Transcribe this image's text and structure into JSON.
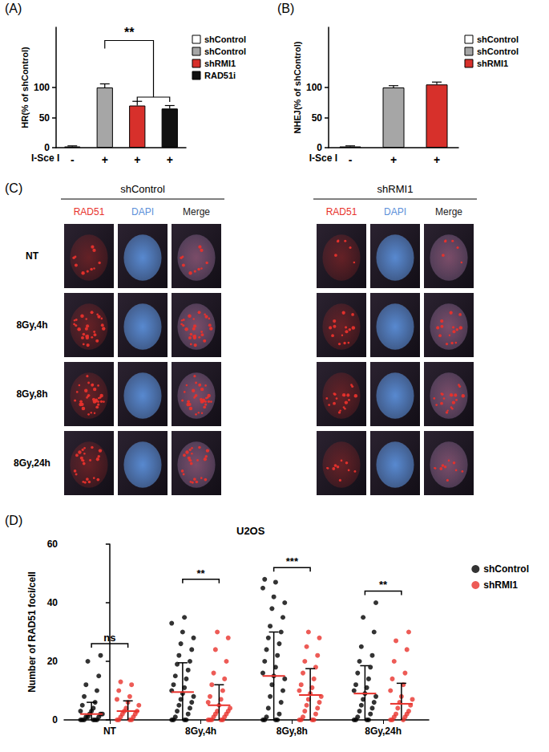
{
  "chart_data": [
    {
      "panel": "(A)",
      "type": "bar",
      "x_label": "I-Sce I",
      "y_label": "HR(% of shControl)",
      "categories": [
        "-",
        "+",
        "+",
        "+"
      ],
      "values": [
        2,
        100,
        70,
        65
      ],
      "errors": [
        1,
        6,
        7,
        5
      ],
      "colors": [
        "#ffffff",
        "#a6a6a6",
        "#d7302b",
        "#111111"
      ],
      "bar_names": [
        "shControl",
        "shControl",
        "shRMI1",
        "RAD51i"
      ],
      "ylim": [
        0,
        200
      ],
      "yticks": [
        0,
        50,
        100
      ],
      "legend": "upper right",
      "significance": [
        {
          "text": "**",
          "from": 1,
          "to": [
            2,
            3
          ],
          "y": 178,
          "inner_y": 84
        }
      ]
    },
    {
      "panel": "(B)",
      "type": "bar",
      "x_label": "I-Sce I",
      "y_label": "NHEJ(% of shControl)",
      "categories": [
        "-",
        "+",
        "+"
      ],
      "values": [
        2,
        100,
        105
      ],
      "errors": [
        1,
        3,
        4
      ],
      "colors": [
        "#ffffff",
        "#a6a6a6",
        "#d7302b"
      ],
      "bar_names": [
        "shControl",
        "shControl",
        "shRMI1"
      ],
      "ylim": [
        0,
        200
      ],
      "yticks": [
        0,
        50,
        100
      ],
      "legend": "upper right"
    },
    {
      "panel": "(D)",
      "type": "scatter",
      "title": "U2OS",
      "y_label": "Number of RAD51 foci/cell",
      "categories": [
        "NT",
        "8Gy,4h",
        "8Gy,8h",
        "8Gy,24h"
      ],
      "ylim": [
        0,
        60
      ],
      "yticks": [
        0,
        20,
        40,
        60
      ],
      "legend": "upper right",
      "marker": "circle",
      "series": [
        {
          "name": "shControl",
          "color": "#000000",
          "values": [
            [
              0,
              0,
              0,
              0,
              0,
              0,
              1,
              1,
              1,
              2,
              2,
              2,
              3,
              3,
              4,
              5,
              6,
              8,
              10,
              12,
              15,
              20,
              22
            ],
            [
              0,
              0,
              0,
              0,
              1,
              2,
              3,
              4,
              5,
              6,
              7,
              8,
              9,
              10,
              11,
              12,
              14,
              15,
              17,
              19,
              20,
              22,
              24,
              26,
              28,
              30,
              33,
              35
            ],
            [
              0,
              0,
              0,
              0,
              1,
              2,
              4,
              6,
              8,
              10,
              12,
              14,
              15,
              16,
              18,
              20,
              22,
              24,
              26,
              28,
              30,
              32,
              35,
              38,
              40,
              42,
              45,
              47,
              48
            ],
            [
              0,
              0,
              0,
              0,
              1,
              2,
              3,
              4,
              5,
              6,
              7,
              8,
              9,
              10,
              11,
              12,
              14,
              16,
              18,
              20,
              22,
              25,
              30,
              35,
              40
            ]
          ],
          "mean": [
            2,
            9.5,
            15,
            9
          ],
          "sd": [
            4,
            10,
            15,
            9.5
          ]
        },
        {
          "name": "shRMI1",
          "color": "#e8322c",
          "values": [
            [
              0,
              0,
              0,
              0,
              1,
              1,
              2,
              2,
              3,
              3,
              4,
              5,
              6,
              7,
              8,
              10,
              12,
              13
            ],
            [
              0,
              0,
              0,
              0,
              0,
              1,
              1,
              2,
              2,
              3,
              3,
              4,
              5,
              6,
              7,
              8,
              10,
              12,
              14,
              16,
              20,
              24,
              28,
              30
            ],
            [
              0,
              0,
              0,
              0,
              1,
              2,
              3,
              4,
              5,
              6,
              7,
              8,
              9,
              10,
              11,
              12,
              14,
              16,
              18,
              20,
              22,
              25,
              28,
              30
            ],
            [
              0,
              0,
              0,
              1,
              1,
              2,
              2,
              3,
              4,
              5,
              6,
              7,
              8,
              10,
              12,
              14,
              16,
              20,
              24,
              27,
              30
            ]
          ],
          "mean": [
            3,
            5,
            8.5,
            5.5
          ],
          "sd": [
            3.5,
            7,
            9,
            7
          ]
        }
      ],
      "significance": [
        {
          "text": "ns",
          "category": "NT",
          "y": 26
        },
        {
          "text": "**",
          "category": "8Gy,4h",
          "y": 48
        },
        {
          "text": "***",
          "category": "8Gy,8h",
          "y": 52
        },
        {
          "text": "**",
          "category": "8Gy,24h",
          "y": 44
        }
      ]
    }
  ],
  "image_panel": {
    "panel": "(C)",
    "groups": [
      "shControl",
      "shRMI1"
    ],
    "channels": [
      {
        "name": "RAD51",
        "color": "#e8322c"
      },
      {
        "name": "DAPI",
        "color": "#5b8fd9"
      },
      {
        "name": "Merge",
        "color": "#222222"
      }
    ],
    "rows": [
      "NT",
      "8Gy,4h",
      "8Gy,8h",
      "8Gy,24h"
    ]
  }
}
